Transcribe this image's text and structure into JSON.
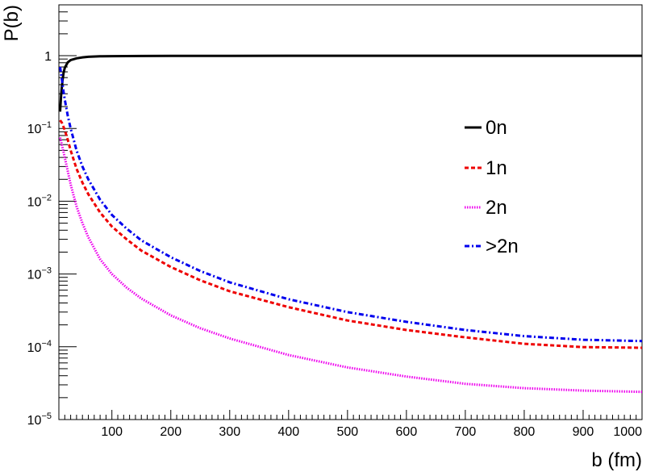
{
  "chart_data": {
    "type": "line",
    "title": "",
    "xlabel": "b (fm)",
    "ylabel": "P(b)",
    "xlim": [
      10,
      1000
    ],
    "ylim": [
      1e-05,
      5
    ],
    "yscale": "log",
    "grid": false,
    "legend_placement": "right-middle",
    "x_ticks": [
      100,
      200,
      300,
      400,
      500,
      600,
      700,
      800,
      900,
      1000
    ],
    "y_ticks": [
      {
        "value": 1,
        "base": "1",
        "exp": ""
      },
      {
        "value": 0.1,
        "base": "10",
        "exp": "−1"
      },
      {
        "value": 0.01,
        "base": "10",
        "exp": "−2"
      },
      {
        "value": 0.001,
        "base": "10",
        "exp": "−3"
      },
      {
        "value": 0.0001,
        "base": "10",
        "exp": "−4"
      },
      {
        "value": 1e-05,
        "base": "10",
        "exp": "−5"
      }
    ],
    "series": [
      {
        "name": "0n",
        "color": "#000000",
        "style": "solid",
        "x": [
          12,
          14,
          16,
          18,
          20,
          25,
          30,
          40,
          50,
          60,
          80,
          100,
          150,
          200,
          300,
          400,
          500,
          600,
          700,
          800,
          900,
          1000
        ],
        "y": [
          0.17,
          0.3,
          0.45,
          0.58,
          0.68,
          0.81,
          0.87,
          0.92,
          0.95,
          0.965,
          0.98,
          0.985,
          0.992,
          0.995,
          0.997,
          0.998,
          0.999,
          0.999,
          0.999,
          0.999,
          0.999,
          0.999
        ]
      },
      {
        "name": "1n",
        "color": "#ee0000",
        "style": "dashed",
        "x": [
          12,
          15,
          20,
          25,
          30,
          40,
          50,
          60,
          80,
          100,
          125,
          150,
          200,
          250,
          300,
          400,
          500,
          600,
          700,
          800,
          900,
          1000
        ],
        "y": [
          0.13,
          0.12,
          0.095,
          0.07,
          0.05,
          0.028,
          0.018,
          0.0125,
          0.007,
          0.0045,
          0.003,
          0.0021,
          0.00125,
          0.00082,
          0.00058,
          0.00035,
          0.00023,
          0.00017,
          0.000135,
          0.00011,
          9.9e-05,
          9.7e-05
        ]
      },
      {
        "name": "2n",
        "color": "#ee00ee",
        "style": "dotted",
        "x": [
          12,
          15,
          20,
          25,
          30,
          40,
          50,
          60,
          80,
          100,
          125,
          150,
          200,
          250,
          300,
          400,
          500,
          600,
          700,
          800,
          900,
          1000
        ],
        "y": [
          0.075,
          0.06,
          0.04,
          0.026,
          0.017,
          0.0085,
          0.005,
          0.0032,
          0.0016,
          0.001,
          0.00065,
          0.00046,
          0.00027,
          0.00018,
          0.00013,
          7.7e-05,
          5.2e-05,
          3.9e-05,
          3.1e-05,
          2.7e-05,
          2.5e-05,
          2.4e-05
        ]
      },
      {
        "name": ">2n",
        "color": "#0000ee",
        "style": "dashdot",
        "x": [
          12,
          14,
          16,
          18,
          20,
          25,
          30,
          40,
          50,
          60,
          80,
          100,
          125,
          150,
          200,
          250,
          300,
          400,
          500,
          600,
          700,
          800,
          900,
          1000
        ],
        "y": [
          0.7,
          0.55,
          0.42,
          0.32,
          0.25,
          0.15,
          0.1,
          0.05,
          0.03,
          0.02,
          0.0105,
          0.0065,
          0.0042,
          0.0029,
          0.0017,
          0.0011,
          0.00077,
          0.00045,
          0.0003,
          0.00022,
          0.00017,
          0.00014,
          0.000125,
          0.00012
        ]
      }
    ]
  }
}
